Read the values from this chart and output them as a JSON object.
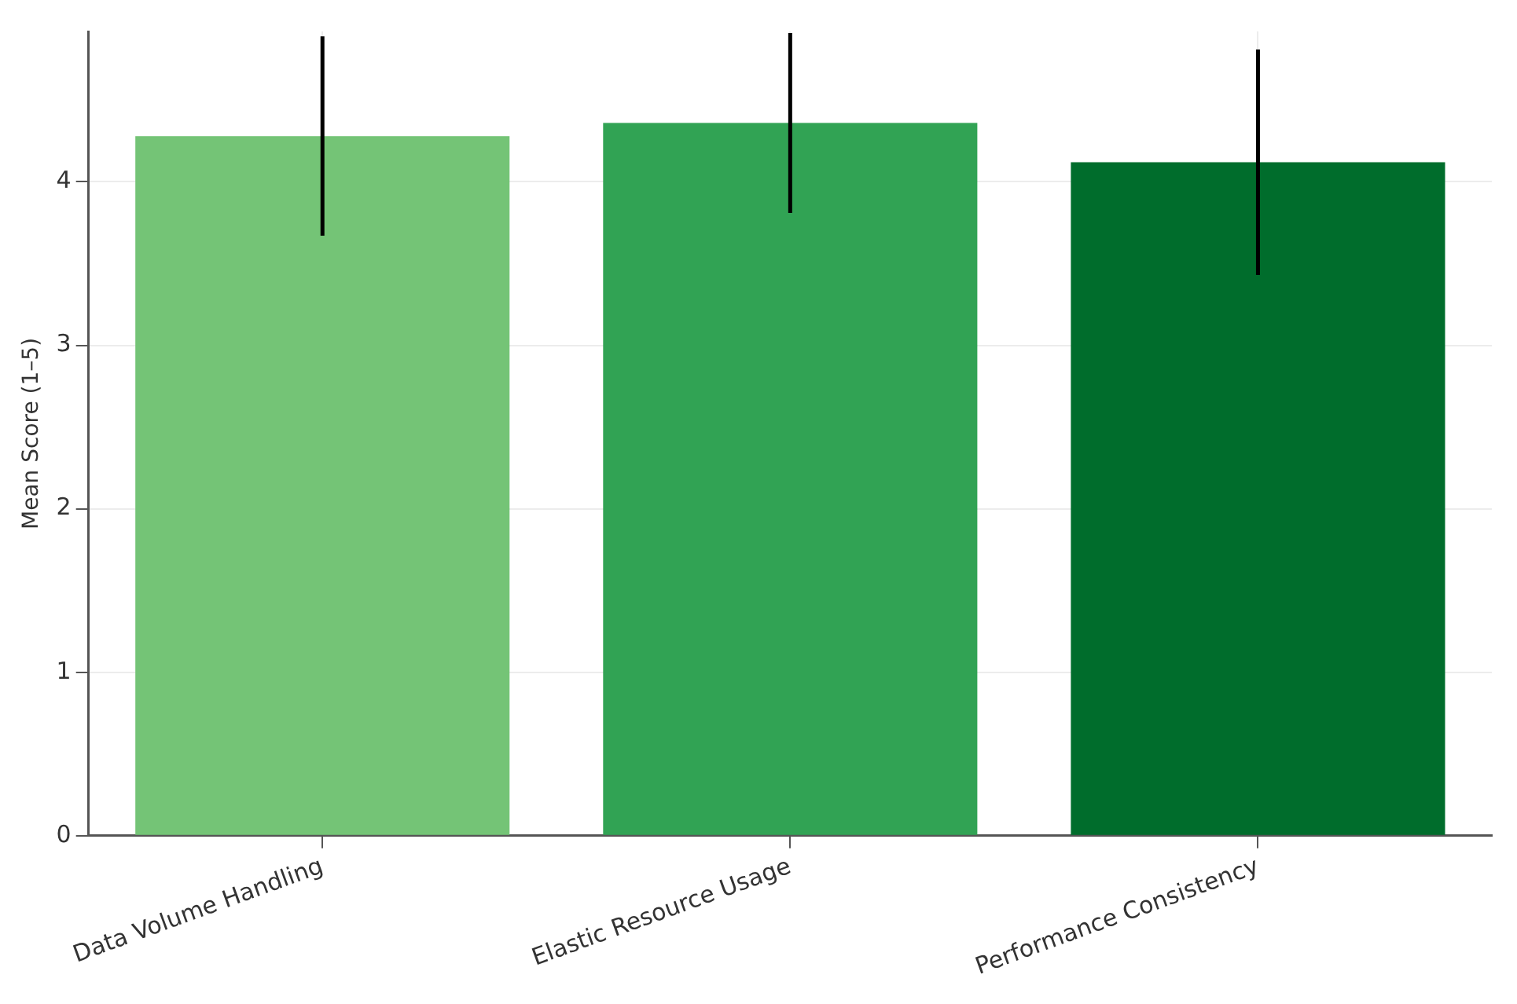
{
  "chart_data": {
    "type": "bar",
    "ylabel": "Mean Score (1–5)",
    "categories": [
      "Data Volume Handling",
      "Elastic Resource Usage",
      "Performance Consistency"
    ],
    "values": [
      4.28,
      4.36,
      4.12
    ],
    "errors": [
      0.61,
      0.55,
      0.69
    ],
    "colors": [
      "#74c476",
      "#31a354",
      "#006d2c"
    ],
    "ylim": [
      0,
      4.92
    ],
    "yticks": [
      0,
      1,
      2,
      3,
      4
    ],
    "grid": true
  }
}
